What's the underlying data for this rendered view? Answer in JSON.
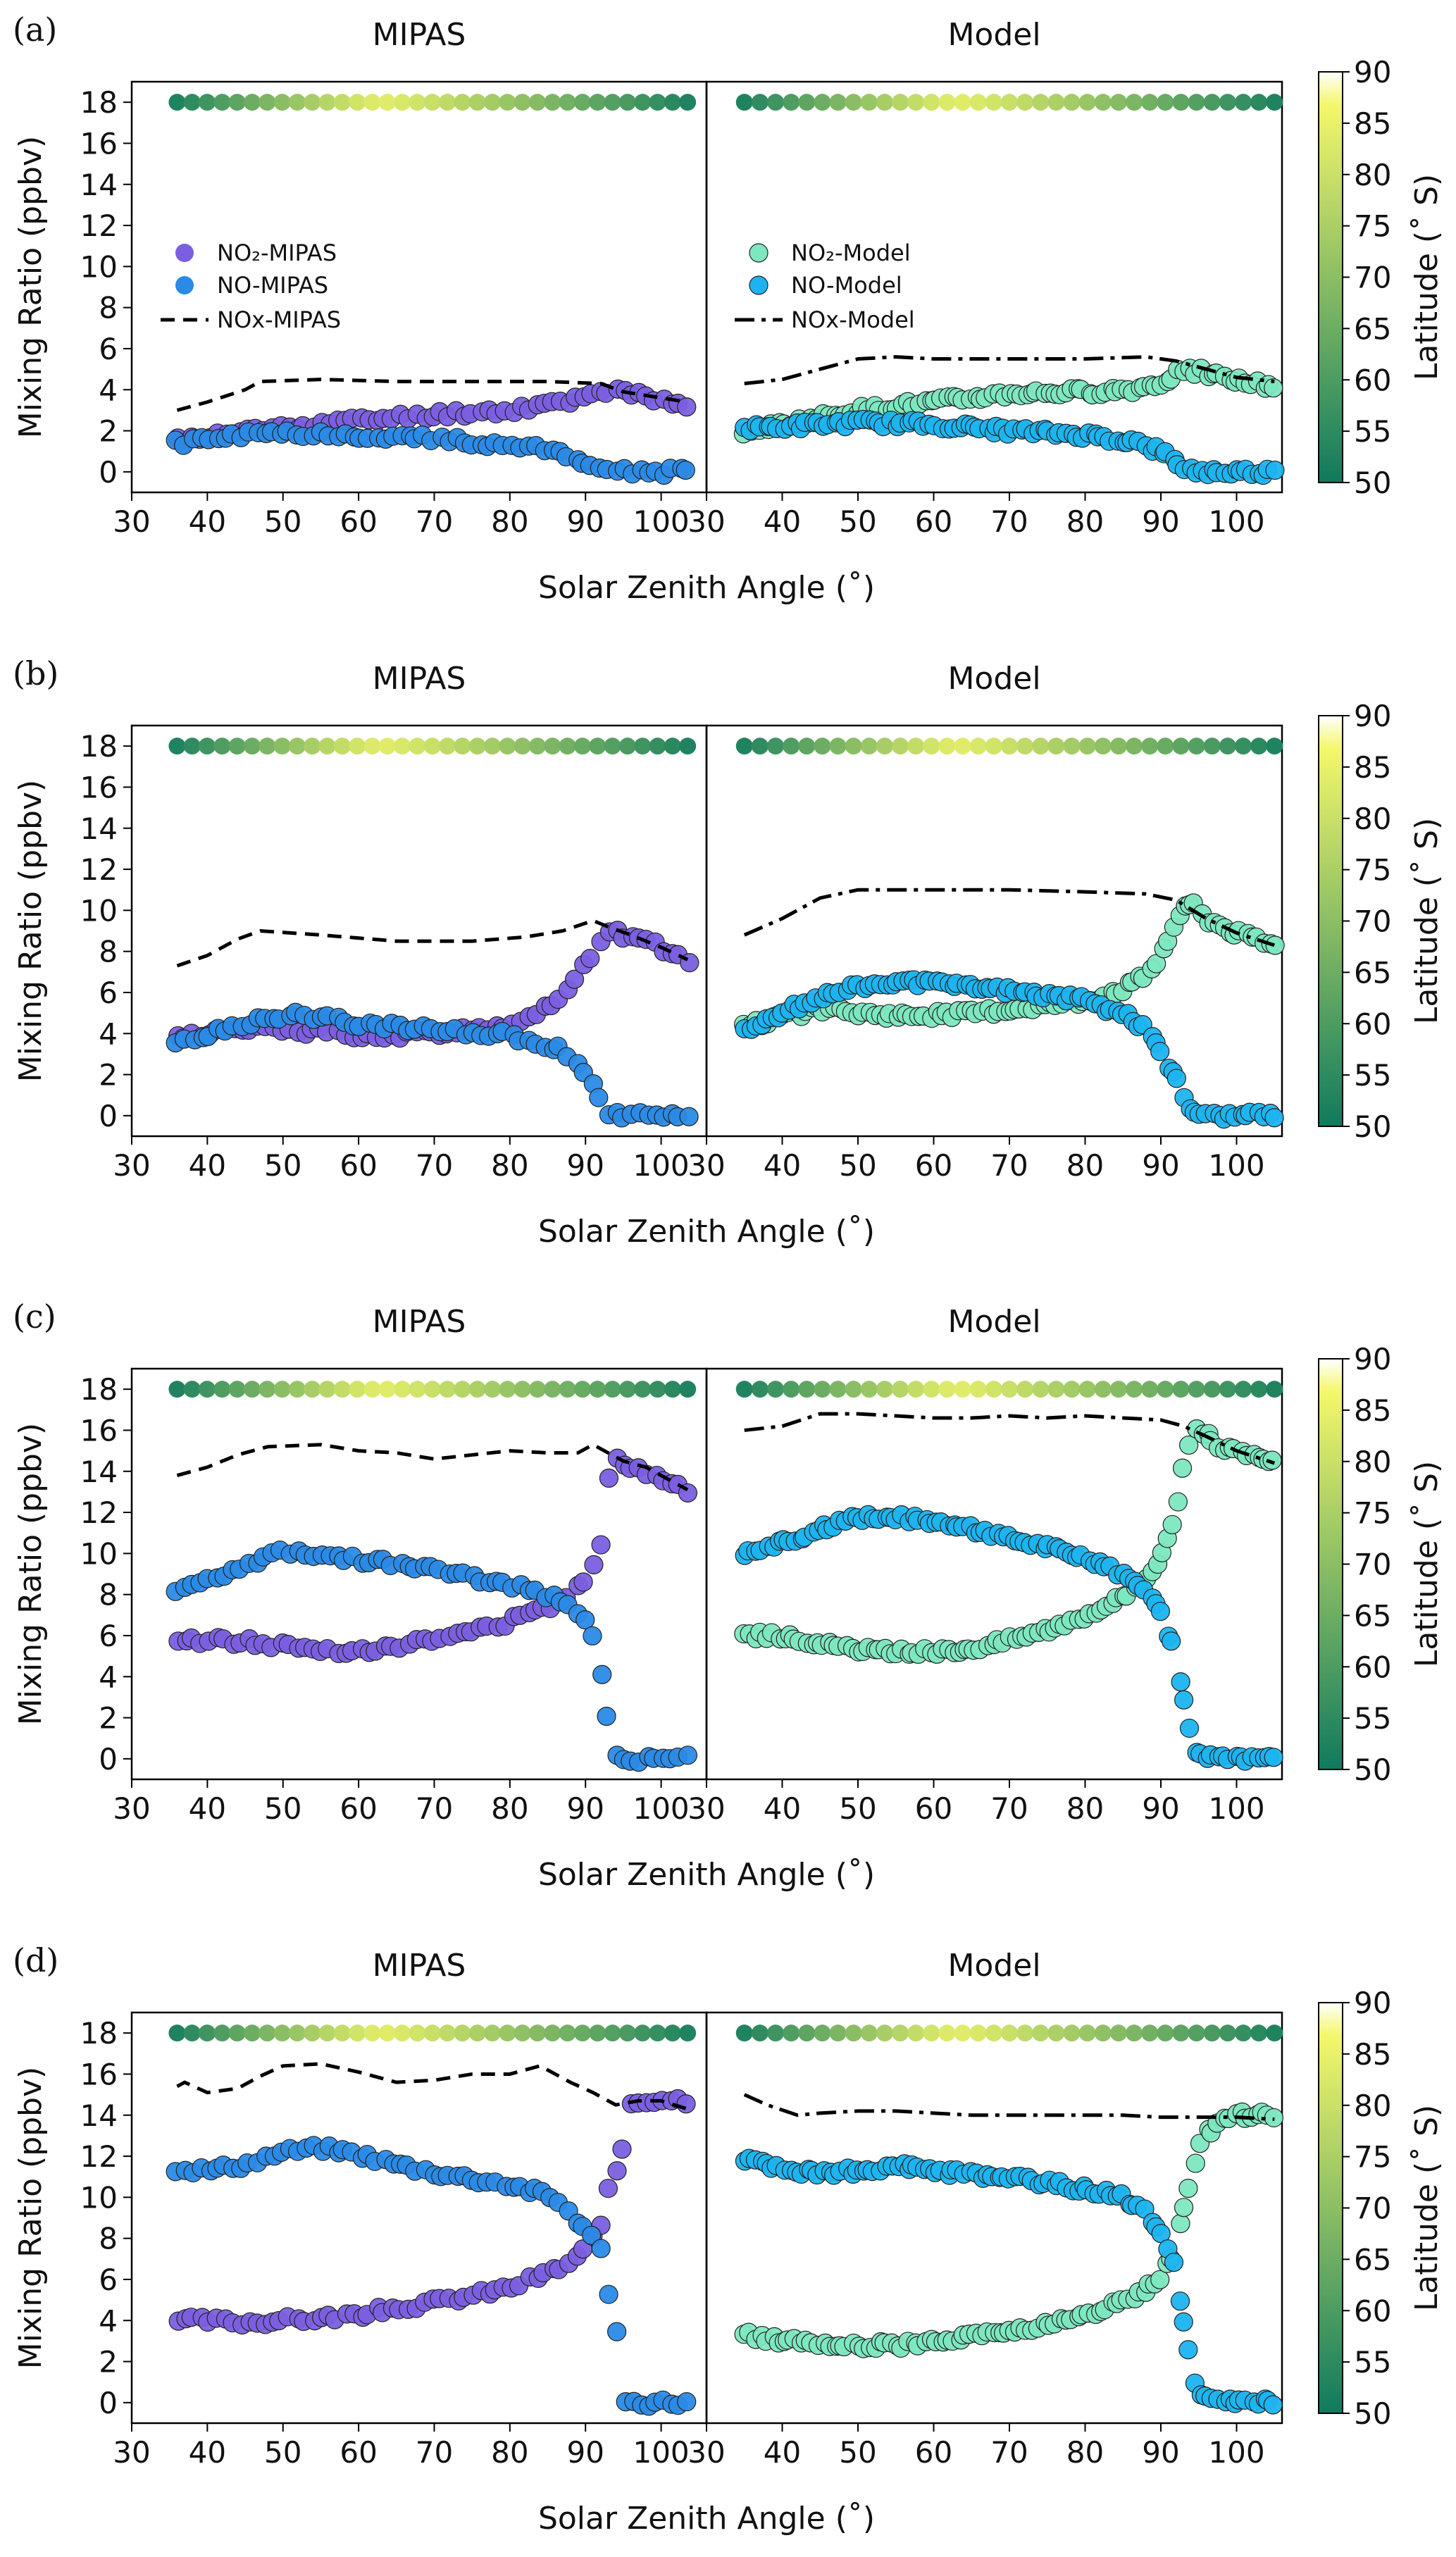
{
  "figure": {
    "x_label": "Solar Zenith Angle (˚)",
    "y_label": "Mixing Ratio (ppbv)",
    "colorbar_label": "Latitude (˚ S)",
    "panel_titles": [
      "MIPAS",
      "Model"
    ],
    "x_ticks": [
      "30",
      "40",
      "50",
      "60",
      "70",
      "80",
      "90",
      "100"
    ],
    "y_ticks": [
      "0",
      "2",
      "4",
      "6",
      "8",
      "10",
      "12",
      "14",
      "16",
      "18"
    ],
    "colorbar_ticks": [
      "50",
      "55",
      "60",
      "65",
      "70",
      "75",
      "80",
      "85",
      "90"
    ],
    "legend_mipas": {
      "no2": "NO₂-MIPAS",
      "no": "NO-MIPAS",
      "nox": "NOx-MIPAS"
    },
    "legend_model": {
      "no2": "NO₂-Model",
      "no": "NO-Model",
      "nox": "NOx-Model"
    },
    "colors": {
      "no2_mipas": "#7b5fe0",
      "no_mipas": "#2a8ae6",
      "no2_model": "#7de8c0",
      "no_model": "#1cb4f0",
      "nox_line": "#000000",
      "colorbar_low": "#0f7a5e",
      "colorbar_high": "#f4f76a"
    },
    "colorbar_scale": "summer_r (green 50 → yellow 90)"
  },
  "chart_data": [
    {
      "panel_label": "(a)",
      "type": "scatter",
      "xlim": [
        30,
        106
      ],
      "ylim": [
        -1,
        19
      ],
      "mipas": {
        "sza_range": [
          36,
          103.5
        ],
        "nox": {
          "x": [
            36,
            40,
            45,
            47,
            55,
            65,
            75,
            85,
            92,
            95,
            100,
            103.5
          ],
          "y": [
            3.0,
            3.4,
            4.0,
            4.4,
            4.5,
            4.4,
            4.4,
            4.4,
            4.3,
            3.9,
            3.6,
            3.4
          ]
        },
        "no2": {
          "x": [
            36,
            40,
            50,
            60,
            70,
            80,
            88,
            92,
            94,
            96,
            100,
            103.5
          ],
          "y": [
            1.5,
            1.7,
            2.2,
            2.5,
            2.8,
            3.0,
            3.5,
            4.0,
            3.9,
            3.8,
            3.4,
            3.3
          ]
        },
        "no": {
          "x": [
            36,
            40,
            45,
            50,
            60,
            70,
            80,
            86,
            90,
            92,
            94,
            100,
            103.5
          ],
          "y": [
            1.4,
            1.6,
            1.8,
            1.9,
            1.8,
            1.6,
            1.3,
            1.0,
            0.5,
            0.2,
            0.0,
            0.0,
            0.0
          ]
        }
      },
      "model": {
        "sza_range": [
          35,
          105
        ],
        "nox": {
          "x": [
            35,
            40,
            45,
            50,
            55,
            60,
            70,
            80,
            88,
            92,
            96,
            100,
            105
          ],
          "y": [
            4.3,
            4.5,
            5.0,
            5.5,
            5.6,
            5.5,
            5.5,
            5.5,
            5.6,
            5.4,
            5.0,
            4.6,
            4.4
          ]
        },
        "no2": {
          "x": [
            35,
            40,
            50,
            60,
            70,
            80,
            86,
            90,
            93,
            95,
            98,
            102,
            105
          ],
          "y": [
            2.0,
            2.3,
            3.0,
            3.4,
            3.8,
            3.9,
            4.0,
            4.3,
            5.0,
            4.9,
            4.6,
            4.3,
            4.2
          ]
        },
        "no": {
          "x": [
            35,
            40,
            50,
            60,
            70,
            80,
            86,
            90,
            93,
            95,
            100,
            105
          ],
          "y": [
            2.1,
            2.2,
            2.4,
            2.3,
            2.0,
            1.8,
            1.5,
            1.0,
            0.2,
            0.0,
            0.0,
            0.0
          ]
        }
      }
    },
    {
      "panel_label": "(b)",
      "type": "scatter",
      "xlim": [
        30,
        106
      ],
      "ylim": [
        -1,
        19
      ],
      "mipas": {
        "sza_range": [
          36,
          103.5
        ],
        "nox": {
          "x": [
            36,
            40,
            44,
            47,
            55,
            65,
            75,
            82,
            87,
            91,
            93,
            96,
            100,
            103.5
          ],
          "y": [
            7.3,
            7.8,
            8.6,
            9.0,
            8.8,
            8.5,
            8.5,
            8.7,
            9.0,
            9.5,
            9.2,
            8.8,
            8.2,
            7.6
          ]
        },
        "no2": {
          "x": [
            36,
            40,
            45,
            50,
            55,
            60,
            70,
            80,
            86,
            89,
            91,
            93,
            95,
            100,
            103.5
          ],
          "y": [
            3.8,
            4.0,
            4.2,
            4.2,
            4.1,
            3.9,
            4.0,
            4.4,
            5.5,
            6.8,
            8.0,
            9.0,
            8.8,
            8.2,
            7.6
          ]
        },
        "no": {
          "x": [
            36,
            40,
            45,
            50,
            55,
            60,
            70,
            80,
            86,
            89,
            91,
            92,
            93,
            95,
            100,
            103.5
          ],
          "y": [
            3.5,
            4.0,
            4.5,
            4.9,
            4.8,
            4.5,
            4.2,
            3.9,
            3.3,
            2.6,
            1.5,
            0.8,
            0.1,
            0.0,
            0.0,
            0.0
          ]
        }
      },
      "model": {
        "sza_range": [
          35,
          105
        ],
        "nox": {
          "x": [
            35,
            40,
            45,
            50,
            55,
            60,
            70,
            80,
            88,
            92,
            96,
            100,
            105
          ],
          "y": [
            8.8,
            9.6,
            10.6,
            11.0,
            11.0,
            11.0,
            11.0,
            10.9,
            10.8,
            10.5,
            9.6,
            8.9,
            8.3
          ]
        },
        "no2": {
          "x": [
            35,
            40,
            45,
            50,
            55,
            60,
            65,
            70,
            75,
            80,
            85,
            88,
            90,
            92,
            94,
            96,
            100,
            105
          ],
          "y": [
            4.3,
            4.8,
            5.2,
            5.0,
            4.9,
            4.9,
            5.0,
            5.2,
            5.4,
            5.6,
            6.2,
            6.8,
            7.8,
            9.5,
            10.4,
            9.6,
            8.9,
            8.3
          ]
        },
        "no": {
          "x": [
            35,
            40,
            45,
            50,
            55,
            60,
            70,
            80,
            86,
            89,
            91,
            93,
            94,
            96,
            100,
            105
          ],
          "y": [
            4.2,
            5.0,
            5.8,
            6.3,
            6.5,
            6.4,
            6.1,
            5.6,
            4.8,
            3.8,
            2.5,
            1.0,
            0.3,
            0.0,
            0.0,
            0.0
          ]
        }
      }
    },
    {
      "panel_label": "(c)",
      "type": "scatter",
      "xlim": [
        30,
        106
      ],
      "ylim": [
        -1,
        19
      ],
      "mipas": {
        "sza_range": [
          36,
          103.5
        ],
        "nox": {
          "x": [
            36,
            40,
            44,
            48,
            55,
            60,
            65,
            70,
            75,
            80,
            85,
            89,
            91,
            93,
            95,
            98,
            100,
            103.5
          ],
          "y": [
            13.8,
            14.2,
            14.8,
            15.2,
            15.3,
            15.0,
            14.9,
            14.6,
            14.8,
            15.0,
            14.9,
            14.9,
            15.3,
            14.9,
            14.5,
            14.2,
            13.8,
            13.1
          ]
        },
        "no2": {
          "x": [
            36,
            40,
            45,
            50,
            55,
            60,
            65,
            70,
            75,
            80,
            85,
            88,
            90,
            92,
            93,
            94,
            96,
            100,
            103.5
          ],
          "y": [
            5.7,
            5.8,
            5.7,
            5.5,
            5.3,
            5.3,
            5.5,
            5.8,
            6.2,
            6.7,
            7.4,
            8.0,
            8.8,
            10.3,
            13.5,
            14.5,
            14.3,
            13.7,
            13.1
          ]
        },
        "no": {
          "x": [
            36,
            40,
            45,
            50,
            55,
            60,
            65,
            70,
            75,
            80,
            85,
            88,
            90,
            91,
            92,
            93,
            94,
            95,
            100,
            103.5
          ],
          "y": [
            8.2,
            8.7,
            9.5,
            10.1,
            10.0,
            9.7,
            9.5,
            9.2,
            8.8,
            8.5,
            8.0,
            7.5,
            6.8,
            6.0,
            4.5,
            1.5,
            0.4,
            0.0,
            0.0,
            0.0
          ]
        }
      },
      "model": {
        "sza_range": [
          35,
          105
        ],
        "nox": {
          "x": [
            35,
            40,
            45,
            50,
            55,
            60,
            65,
            70,
            75,
            80,
            85,
            90,
            93,
            96,
            100,
            105
          ],
          "y": [
            16.0,
            16.2,
            16.8,
            16.8,
            16.7,
            16.6,
            16.6,
            16.7,
            16.6,
            16.7,
            16.6,
            16.5,
            16.2,
            15.7,
            15.0,
            14.4
          ]
        },
        "no2": {
          "x": [
            35,
            40,
            45,
            50,
            55,
            60,
            65,
            70,
            75,
            80,
            85,
            88,
            90,
            92,
            93,
            94,
            95,
            97,
            100,
            105
          ],
          "y": [
            6.0,
            6.0,
            5.6,
            5.3,
            5.2,
            5.2,
            5.4,
            5.8,
            6.3,
            7.0,
            7.9,
            8.8,
            9.8,
            12.0,
            14.5,
            15.8,
            16.2,
            15.4,
            14.9,
            14.4
          ]
        },
        "no": {
          "x": [
            35,
            40,
            45,
            50,
            55,
            60,
            65,
            70,
            75,
            80,
            85,
            88,
            90,
            92,
            93,
            94,
            95,
            100,
            105
          ],
          "y": [
            9.9,
            10.5,
            11.2,
            11.7,
            11.8,
            11.5,
            11.2,
            10.8,
            10.3,
            9.7,
            9.0,
            8.2,
            7.0,
            5.0,
            3.0,
            1.2,
            0.1,
            0.0,
            0.0
          ]
        }
      }
    },
    {
      "panel_label": "(d)",
      "type": "scatter",
      "xlim": [
        30,
        106
      ],
      "ylim": [
        -1,
        19
      ],
      "mipas": {
        "sza_range": [
          36,
          103.5
        ],
        "nox": {
          "x": [
            36,
            37,
            40,
            44,
            47,
            50,
            55,
            60,
            65,
            70,
            75,
            80,
            84,
            88,
            91,
            94,
            97,
            100,
            103.5
          ],
          "y": [
            15.4,
            15.6,
            15.1,
            15.3,
            15.9,
            16.4,
            16.5,
            16.1,
            15.6,
            15.7,
            16.0,
            16.0,
            16.4,
            15.6,
            15.1,
            14.5,
            14.7,
            14.7,
            14.3
          ]
        },
        "no2": {
          "x": [
            36,
            40,
            45,
            50,
            55,
            60,
            65,
            70,
            75,
            80,
            85,
            88,
            90,
            92,
            93,
            94,
            96,
            100,
            103.5
          ],
          "y": [
            4.0,
            4.0,
            3.9,
            4.0,
            4.1,
            4.3,
            4.6,
            4.9,
            5.2,
            5.6,
            6.3,
            6.8,
            7.5,
            8.5,
            10.6,
            10.8,
            14.6,
            14.8,
            14.7
          ]
        },
        "no": {
          "x": [
            36,
            40,
            45,
            50,
            55,
            60,
            65,
            70,
            75,
            80,
            85,
            88,
            90,
            92,
            93,
            94,
            95,
            100,
            103.5
          ],
          "y": [
            11.4,
            11.3,
            11.6,
            12.2,
            12.4,
            12.1,
            11.6,
            11.2,
            10.9,
            10.6,
            10.1,
            9.3,
            8.4,
            7.5,
            5.5,
            4.1,
            0.0,
            0.0,
            0.0
          ]
        }
      },
      "model": {
        "sza_range": [
          35,
          105
        ],
        "nox": {
          "x": [
            35,
            38,
            42,
            45,
            50,
            55,
            60,
            65,
            70,
            75,
            80,
            85,
            90,
            95,
            100,
            105
          ],
          "y": [
            15.0,
            14.5,
            14.0,
            14.1,
            14.2,
            14.2,
            14.1,
            14.0,
            14.0,
            14.0,
            14.0,
            14.0,
            13.9,
            13.9,
            13.9,
            13.8
          ]
        },
        "no2": {
          "x": [
            35,
            40,
            45,
            50,
            55,
            60,
            65,
            70,
            75,
            80,
            85,
            88,
            90,
            92,
            93,
            94,
            95,
            97,
            100,
            105
          ],
          "y": [
            3.3,
            3.0,
            2.9,
            2.8,
            2.8,
            3.0,
            3.2,
            3.5,
            3.8,
            4.3,
            4.9,
            5.5,
            6.2,
            7.5,
            9.5,
            10.8,
            12.5,
            13.5,
            14.0,
            14.0
          ]
        },
        "no": {
          "x": [
            35,
            40,
            45,
            50,
            55,
            60,
            65,
            70,
            75,
            80,
            85,
            88,
            90,
            92,
            93,
            94,
            95,
            96,
            100,
            105
          ],
          "y": [
            11.8,
            11.4,
            11.2,
            11.3,
            11.5,
            11.3,
            11.1,
            10.9,
            10.7,
            10.4,
            10.0,
            9.3,
            8.2,
            6.5,
            4.0,
            1.5,
            0.5,
            0.1,
            0.0,
            0.0
          ]
        }
      }
    }
  ]
}
